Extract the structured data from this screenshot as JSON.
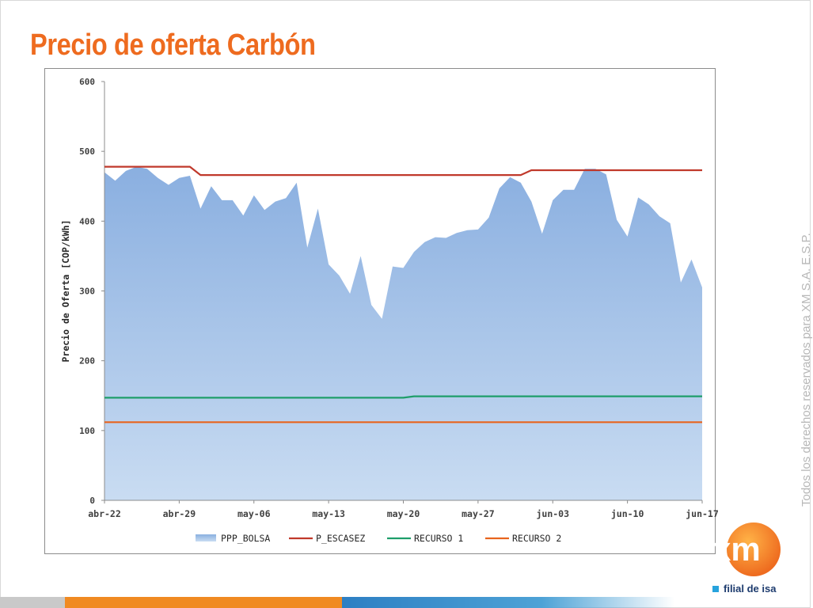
{
  "title": "Precio de oferta Carbón",
  "copyright": "Todos los derechos reservados para XM S.A. E.S.P.",
  "footer": {
    "logo_text": "xm",
    "tagline": "filial de isa"
  },
  "colors": {
    "title": "#ee6b1f",
    "area": "#8fb4e3",
    "p_escasez": "#c0392b",
    "recurso1": "#1e9e6a",
    "recurso2": "#e8641e",
    "logo": "#f08a22"
  },
  "chart_data": {
    "type": "area",
    "ylabel": "Precio de Oferta [COP/kWh]",
    "ylim": [
      0,
      600
    ],
    "yticks": [
      0,
      100,
      200,
      300,
      400,
      500,
      600
    ],
    "xlim": [
      "2012-04-22",
      "2012-06-17"
    ],
    "xticks": [
      "abr-22",
      "abr-29",
      "may-06",
      "may-13",
      "may-20",
      "may-27",
      "jun-03",
      "jun-10",
      "jun-17"
    ],
    "legend_position": "bottom",
    "series": [
      {
        "name": "PPP_BOLSA",
        "kind": "area",
        "x": [
          "2012-04-22",
          "2012-04-23",
          "2012-04-24",
          "2012-04-25",
          "2012-04-26",
          "2012-04-27",
          "2012-04-28",
          "2012-04-29",
          "2012-04-30",
          "2012-05-01",
          "2012-05-02",
          "2012-05-03",
          "2012-05-04",
          "2012-05-05",
          "2012-05-06",
          "2012-05-07",
          "2012-05-08",
          "2012-05-09",
          "2012-05-10",
          "2012-05-11",
          "2012-05-12",
          "2012-05-13",
          "2012-05-14",
          "2012-05-15",
          "2012-05-16",
          "2012-05-17",
          "2012-05-18",
          "2012-05-19",
          "2012-05-20",
          "2012-05-21",
          "2012-05-22",
          "2012-05-23",
          "2012-05-24",
          "2012-05-25",
          "2012-05-26",
          "2012-05-27",
          "2012-05-28",
          "2012-05-29",
          "2012-05-30",
          "2012-05-31",
          "2012-06-01",
          "2012-06-02",
          "2012-06-03",
          "2012-06-04",
          "2012-06-05",
          "2012-06-06",
          "2012-06-07",
          "2012-06-08",
          "2012-06-09",
          "2012-06-10",
          "2012-06-11",
          "2012-06-12",
          "2012-06-13",
          "2012-06-14",
          "2012-06-15",
          "2012-06-16",
          "2012-06-17"
        ],
        "values": [
          470,
          458,
          472,
          478,
          475,
          462,
          452,
          462,
          465,
          418,
          450,
          430,
          430,
          408,
          437,
          416,
          428,
          433,
          455,
          362,
          418,
          338,
          322,
          296,
          350,
          280,
          260,
          335,
          333,
          356,
          370,
          377,
          376,
          383,
          387,
          388,
          405,
          447,
          463,
          455,
          428,
          382,
          430,
          445,
          445,
          475,
          475,
          467,
          402,
          378,
          434,
          424,
          407,
          397,
          312,
          345,
          305
        ]
      },
      {
        "name": "P_ESCASEZ",
        "kind": "line",
        "x": [
          "2012-04-22",
          "2012-04-30",
          "2012-05-01",
          "2012-05-31",
          "2012-06-01",
          "2012-06-17"
        ],
        "values": [
          478,
          478,
          466,
          466,
          473,
          473
        ]
      },
      {
        "name": "RECURSO 1",
        "kind": "line",
        "x": [
          "2012-04-22",
          "2012-05-20",
          "2012-05-21",
          "2012-06-17"
        ],
        "values": [
          147,
          147,
          149,
          149
        ]
      },
      {
        "name": "RECURSO 2",
        "kind": "line",
        "x": [
          "2012-04-22",
          "2012-06-17"
        ],
        "values": [
          112,
          112
        ]
      }
    ]
  }
}
